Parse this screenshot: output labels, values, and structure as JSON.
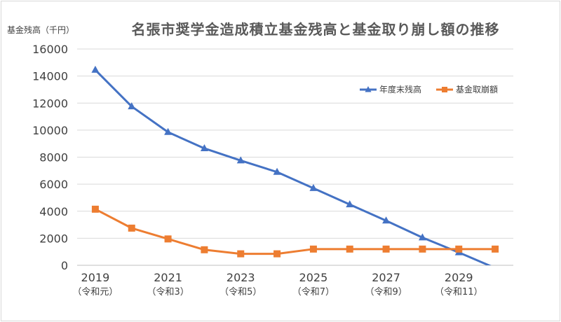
{
  "chart_data": {
    "type": "line",
    "title": "名張市奨学金造成積立基金残高と基金取り崩し額の推移",
    "ylabel": "基金残高（千円）",
    "xlabel": "",
    "ylim": [
      0,
      16000
    ],
    "yticks": [
      "0",
      "2000",
      "4000",
      "6000",
      "8000",
      "10000",
      "12000",
      "14000",
      "16000"
    ],
    "x": [
      2019,
      2020,
      2021,
      2022,
      2023,
      2024,
      2025,
      2026,
      2027,
      2028,
      2029,
      2030
    ],
    "xticks": [
      {
        "year": "2019",
        "era": "（令和元）"
      },
      {
        "year": "2021",
        "era": "（令和3）"
      },
      {
        "year": "2023",
        "era": "（令和5）"
      },
      {
        "year": "2025",
        "era": "（令和7）"
      },
      {
        "year": "2027",
        "era": "（令和9）"
      },
      {
        "year": "2029",
        "era": "（令和11）"
      }
    ],
    "grid": true,
    "legend_position": "top-right",
    "series": [
      {
        "name": "年度末残高",
        "color": "#4472c4",
        "marker": "triangle",
        "values": [
          14450,
          11750,
          9850,
          8650,
          7750,
          6900,
          5700,
          4500,
          3300,
          2050,
          950,
          -200
        ]
      },
      {
        "name": "基金取崩額",
        "color": "#ed7d31",
        "marker": "square",
        "values": [
          4150,
          2750,
          1950,
          1150,
          850,
          850,
          1200,
          1200,
          1200,
          1200,
          1200,
          1200
        ]
      }
    ]
  }
}
